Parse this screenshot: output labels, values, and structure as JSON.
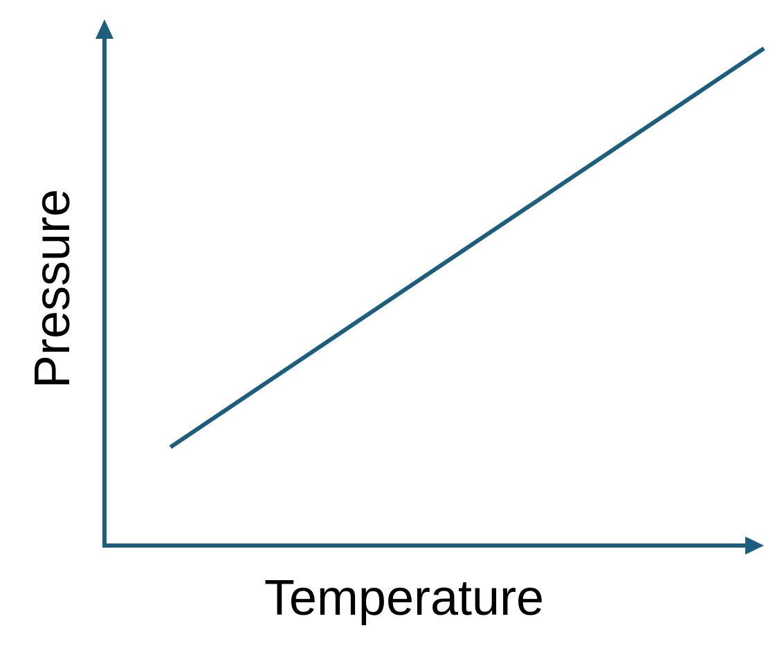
{
  "chart_data": {
    "type": "line",
    "title": "",
    "xlabel": "Temperature",
    "ylabel": "Pressure",
    "axis_ticks": "none",
    "grid": false,
    "axes_style": "arrows",
    "xlim": [
      0,
      10
    ],
    "ylim": [
      0,
      10
    ],
    "series": [
      {
        "x": [
          1,
          10
        ],
        "y": [
          1.9,
          9.6
        ]
      }
    ],
    "color": "#1b5e7e"
  }
}
